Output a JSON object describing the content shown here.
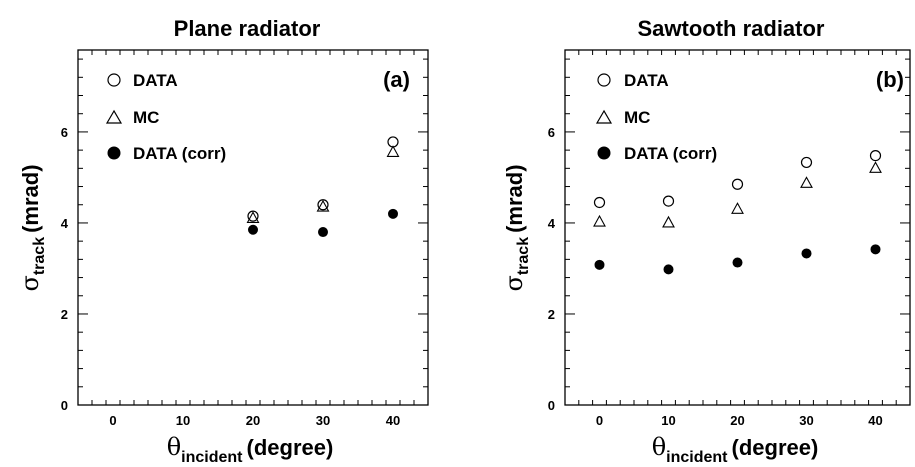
{
  "chart_data": [
    {
      "type": "scatter",
      "title": "Plane radiator",
      "panel_label": "(a)",
      "ylabel": {
        "symbol": "σ",
        "subscript": "track",
        "unit": "(mrad)"
      },
      "xlabel": {
        "symbol": "θ",
        "subscript": "incident",
        "unit": "(degree)"
      },
      "xlim": [
        -5,
        45
      ],
      "ylim": [
        0,
        7.8
      ],
      "xticks": [
        0,
        10,
        20,
        30,
        40
      ],
      "yticks": [
        0,
        2,
        4,
        6
      ],
      "legend_position": "top-left",
      "series": [
        {
          "name": "DATA",
          "marker": "open-circle",
          "x": [
            20,
            30,
            40
          ],
          "y": [
            4.15,
            4.4,
            5.78
          ]
        },
        {
          "name": "MC",
          "marker": "open-triangle",
          "x": [
            20,
            30,
            40
          ],
          "y": [
            4.1,
            4.35,
            5.55
          ]
        },
        {
          "name": "DATA (corr)",
          "marker": "filled-circle",
          "x": [
            20,
            30,
            40
          ],
          "y": [
            3.85,
            3.8,
            4.2
          ]
        }
      ]
    },
    {
      "type": "scatter",
      "title": "Sawtooth radiator",
      "panel_label": "(b)",
      "ylabel": {
        "symbol": "σ",
        "subscript": "track",
        "unit": "(mrad)"
      },
      "xlabel": {
        "symbol": "θ",
        "subscript": "incident",
        "unit": "(degree)"
      },
      "xlim": [
        -5,
        45
      ],
      "ylim": [
        0,
        7.8
      ],
      "xticks": [
        0,
        10,
        20,
        30,
        40
      ],
      "yticks": [
        0,
        2,
        4,
        6
      ],
      "legend_position": "top-left",
      "series": [
        {
          "name": "DATA",
          "marker": "open-circle",
          "x": [
            0,
            10,
            20,
            30,
            40
          ],
          "y": [
            4.45,
            4.48,
            4.85,
            5.33,
            5.48
          ]
        },
        {
          "name": "MC",
          "marker": "open-triangle",
          "x": [
            0,
            10,
            20,
            30,
            40
          ],
          "y": [
            4.02,
            4.0,
            4.3,
            4.87,
            5.2
          ]
        },
        {
          "name": "DATA (corr)",
          "marker": "filled-circle",
          "x": [
            0,
            10,
            20,
            30,
            40
          ],
          "y": [
            3.08,
            2.98,
            3.13,
            3.33,
            3.42
          ]
        }
      ]
    }
  ]
}
